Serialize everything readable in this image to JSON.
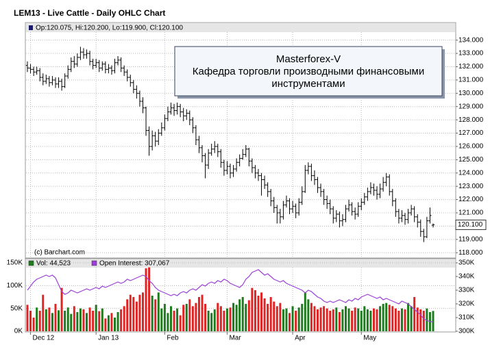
{
  "chart_data": [
    {
      "type": "ohlc",
      "title": "LEM13 - Live Cattle - Daily OHLC Chart",
      "info": "Op:120.075, Hi:120.200, Lo:119.900, Cl:120.100",
      "annotation": [
        "Masterforex-V",
        "Кафедра торговли производными финансовыми",
        "инструментами"
      ],
      "credit": "(c) Barchart.com",
      "color": "#000000",
      "open": [
        132.1,
        131.9,
        131.8,
        131.6,
        131.7,
        131.2,
        130.9,
        131.1,
        130.8,
        131.0,
        130.7,
        130.9,
        130.5,
        131.3,
        131.8,
        132.4,
        132.2,
        132.7,
        133.1,
        132.9,
        133.0,
        132.4,
        132.1,
        132.3,
        131.9,
        132.2,
        131.8,
        131.9,
        131.7,
        132.3,
        132.5,
        131.9,
        131.6,
        131.2,
        130.8,
        130.3,
        130.0,
        129.4,
        128.9,
        127.2,
        126.0,
        126.8,
        126.4,
        127.0,
        127.4,
        128.1,
        128.6,
        128.9,
        128.7,
        129.0,
        128.6,
        128.3,
        128.5,
        128.0,
        127.4,
        126.5,
        125.9,
        125.3,
        124.6,
        125.5,
        125.8,
        126.0,
        125.6,
        124.8,
        124.2,
        124.5,
        124.0,
        124.3,
        124.8,
        125.1,
        125.4,
        125.8,
        124.9,
        124.4,
        124.0,
        123.8,
        123.5,
        123.1,
        122.6,
        121.9,
        121.4,
        121.0,
        120.7,
        121.6,
        121.9,
        121.3,
        121.5,
        121.0,
        121.8,
        122.6,
        124.2,
        124.5,
        123.8,
        123.5,
        122.9,
        122.6,
        122.0,
        121.7,
        121.3,
        120.6,
        120.9,
        120.4,
        120.5,
        121.3,
        121.6,
        121.1,
        120.9,
        121.5,
        121.8,
        122.2,
        122.6,
        122.9,
        122.7,
        122.4,
        122.8,
        123.3,
        123.7,
        122.6,
        121.9,
        121.1,
        120.6,
        120.8,
        120.5,
        121.0,
        121.3,
        120.7,
        120.3,
        119.6,
        119.2,
        120.4,
        120.075
      ],
      "high": [
        132.4,
        132.2,
        132.0,
        132.0,
        131.9,
        131.5,
        131.4,
        131.3,
        131.3,
        131.2,
        131.2,
        131.1,
        131.5,
        132.1,
        132.7,
        132.8,
        133.0,
        133.5,
        133.4,
        133.3,
        133.2,
        132.6,
        132.6,
        132.5,
        132.4,
        132.4,
        132.2,
        132.1,
        132.6,
        132.8,
        132.7,
        132.1,
        131.8,
        131.4,
        131.0,
        130.6,
        130.2,
        129.7,
        129.0,
        127.5,
        127.2,
        127.1,
        127.3,
        127.8,
        128.4,
        129.0,
        129.3,
        129.2,
        129.3,
        129.2,
        128.9,
        128.8,
        128.7,
        128.2,
        127.6,
        126.8,
        126.1,
        125.5,
        125.8,
        126.2,
        126.4,
        126.2,
        125.8,
        125.0,
        124.9,
        124.7,
        124.6,
        125.1,
        125.4,
        125.8,
        126.1,
        125.9,
        125.1,
        124.6,
        124.3,
        124.0,
        123.8,
        123.3,
        122.8,
        122.2,
        121.6,
        121.3,
        121.9,
        122.3,
        122.1,
        121.9,
        121.7,
        122.1,
        123.0,
        124.6,
        124.8,
        124.7,
        124.2,
        123.7,
        123.2,
        122.8,
        122.3,
        122.0,
        121.5,
        121.2,
        121.1,
        120.9,
        121.6,
        122.0,
        121.8,
        121.4,
        121.8,
        122.1,
        122.5,
        122.9,
        123.3,
        123.2,
        123.0,
        123.2,
        123.7,
        124.0,
        123.9,
        122.8,
        122.1,
        121.3,
        121.2,
        121.0,
        121.3,
        121.6,
        121.5,
        120.9,
        120.5,
        119.8,
        120.7,
        121.4,
        120.2
      ],
      "low": [
        131.6,
        131.5,
        131.3,
        131.4,
        130.9,
        130.6,
        130.7,
        130.5,
        130.6,
        130.4,
        130.4,
        130.2,
        130.4,
        131.1,
        131.6,
        131.9,
        132.0,
        132.5,
        132.6,
        132.6,
        132.1,
        131.8,
        131.9,
        131.6,
        131.7,
        131.5,
        131.5,
        131.4,
        131.5,
        132.1,
        131.6,
        131.3,
        130.9,
        130.5,
        130.0,
        129.6,
        129.0,
        128.5,
        126.8,
        125.3,
        125.7,
        126.0,
        126.1,
        126.8,
        127.2,
        127.9,
        128.4,
        128.3,
        128.4,
        128.2,
        127.9,
        128.0,
        127.6,
        127.0,
        126.1,
        125.5,
        124.8,
        123.6,
        124.3,
        125.3,
        125.5,
        125.2,
        124.4,
        123.8,
        123.9,
        123.6,
        123.7,
        124.1,
        124.5,
        125.0,
        125.2,
        124.5,
        124.0,
        123.6,
        123.4,
        122.3,
        122.8,
        122.2,
        121.5,
        121.0,
        120.2,
        120.2,
        120.5,
        121.4,
        120.9,
        121.0,
        120.6,
        120.8,
        121.6,
        122.5,
        123.9,
        123.4,
        123.1,
        122.5,
        122.2,
        121.6,
        121.3,
        120.9,
        120.2,
        120.3,
        119.9,
        120.0,
        120.3,
        121.1,
        120.8,
        120.5,
        120.7,
        121.2,
        121.6,
        121.9,
        122.4,
        122.3,
        122.0,
        122.1,
        122.6,
        123.0,
        122.3,
        121.5,
        120.7,
        120.2,
        120.3,
        120.1,
        120.2,
        120.8,
        120.3,
        119.9,
        119.2,
        118.8,
        119.1,
        120.2,
        119.9
      ],
      "close": [
        131.9,
        131.8,
        131.6,
        131.7,
        131.2,
        130.9,
        131.1,
        130.8,
        131.0,
        130.7,
        130.9,
        130.5,
        131.3,
        131.8,
        132.4,
        132.2,
        132.7,
        133.1,
        132.9,
        133.0,
        132.4,
        132.1,
        132.3,
        131.9,
        132.2,
        131.8,
        131.9,
        131.7,
        132.3,
        132.5,
        131.9,
        131.6,
        131.2,
        130.8,
        130.3,
        130.0,
        129.4,
        128.9,
        127.2,
        126.0,
        126.8,
        126.4,
        127.0,
        127.4,
        128.1,
        128.6,
        128.9,
        128.7,
        129.0,
        128.6,
        128.3,
        128.5,
        128.0,
        127.4,
        126.5,
        125.9,
        125.3,
        124.6,
        125.5,
        125.8,
        126.0,
        125.6,
        124.8,
        124.2,
        124.5,
        124.0,
        124.3,
        124.8,
        125.1,
        125.4,
        125.8,
        124.9,
        124.4,
        124.0,
        123.8,
        123.5,
        123.1,
        122.6,
        121.9,
        121.4,
        121.0,
        120.7,
        121.6,
        121.9,
        121.3,
        121.5,
        121.0,
        121.8,
        122.6,
        124.2,
        124.5,
        123.8,
        123.5,
        122.9,
        122.6,
        122.0,
        121.7,
        121.3,
        120.6,
        120.9,
        120.4,
        120.5,
        121.3,
        121.6,
        121.1,
        120.9,
        121.5,
        121.8,
        122.2,
        122.6,
        122.9,
        122.7,
        122.4,
        122.8,
        123.3,
        123.7,
        122.6,
        121.9,
        121.1,
        120.6,
        120.8,
        120.5,
        121.0,
        121.3,
        120.7,
        120.3,
        119.6,
        119.2,
        120.4,
        120.8,
        120.1
      ],
      "last_price": {
        "value": 120.1,
        "label": "120.100"
      },
      "ylim": [
        117.6,
        134.6
      ],
      "yticks": [
        {
          "value": 118,
          "label": "118.000"
        },
        {
          "value": 119,
          "label": "119.000"
        },
        {
          "value": 120,
          "label": "120.000"
        },
        {
          "value": 121,
          "label": "121.000"
        },
        {
          "value": 122,
          "label": "122.000"
        },
        {
          "value": 123,
          "label": "123.000"
        },
        {
          "value": 124,
          "label": "124.000"
        },
        {
          "value": 125,
          "label": "125.000"
        },
        {
          "value": 126,
          "label": "126.000"
        },
        {
          "value": 127,
          "label": "127.000"
        },
        {
          "value": 128,
          "label": "128.000"
        },
        {
          "value": 129,
          "label": "129.000"
        },
        {
          "value": 130,
          "label": "130.000"
        },
        {
          "value": 131,
          "label": "131.000"
        },
        {
          "value": 132,
          "label": "132.000"
        },
        {
          "value": 133,
          "label": "133.000"
        },
        {
          "value": 134,
          "label": "134.000"
        }
      ],
      "grid": true
    },
    {
      "type": "volume",
      "categories": [
        null,
        "Dec 12",
        null,
        null,
        null,
        null,
        null,
        null,
        null,
        null,
        null,
        null,
        null,
        null,
        null,
        null,
        null,
        null,
        null,
        null,
        null,
        null,
        "Jan 13",
        null,
        null,
        null,
        null,
        null,
        null,
        null,
        null,
        null,
        null,
        null,
        null,
        null,
        null,
        null,
        null,
        null,
        null,
        null,
        null,
        null,
        "Feb",
        null,
        null,
        null,
        null,
        null,
        null,
        null,
        null,
        null,
        null,
        null,
        null,
        null,
        null,
        null,
        null,
        null,
        null,
        null,
        "Mar",
        null,
        null,
        null,
        null,
        null,
        null,
        null,
        null,
        null,
        null,
        null,
        null,
        null,
        null,
        null,
        null,
        null,
        null,
        null,
        null,
        "Apr",
        null,
        null,
        null,
        null,
        null,
        null,
        null,
        null,
        null,
        null,
        null,
        null,
        null,
        null,
        null,
        null,
        null,
        null,
        null,
        null,
        null,
        "May",
        null,
        null,
        null,
        null,
        null,
        null,
        null,
        null,
        null,
        null,
        null,
        null,
        null,
        null,
        null,
        null,
        null,
        null,
        null,
        null,
        null,
        null,
        null
      ],
      "series": [
        {
          "name": "Vol: 44,523",
          "color": "#1e7b1e",
          "down_color": "#e02424",
          "values": [
            58000,
            45000,
            30000,
            52000,
            45000,
            80000,
            48000,
            52000,
            40000,
            60000,
            46000,
            95000,
            45000,
            52000,
            38000,
            55000,
            42000,
            50000,
            48000,
            40000,
            52000,
            45000,
            58000,
            44000,
            50000,
            28000,
            35000,
            40000,
            30000,
            42000,
            48000,
            55000,
            70000,
            80000,
            75000,
            65000,
            80000,
            85000,
            138000,
            140000,
            78000,
            70000,
            85000,
            50000,
            60000,
            40000,
            55000,
            45000,
            50000,
            35000,
            58000,
            60000,
            70000,
            55000,
            62000,
            75000,
            80000,
            60000,
            45000,
            40000,
            48000,
            62000,
            55000,
            45000,
            50000,
            52000,
            62000,
            58000,
            70000,
            75000,
            60000,
            68000,
            95000,
            90000,
            78000,
            85000,
            72000,
            60000,
            75000,
            65000,
            55000,
            62000,
            48000,
            50000,
            40000,
            55000,
            45000,
            52000,
            60000,
            85000,
            70000,
            62000,
            55000,
            48000,
            52000,
            55000,
            50000,
            45000,
            48000,
            52000,
            42000,
            48000,
            55000,
            50000,
            45000,
            52000,
            50000,
            45000,
            55000,
            48000,
            45000,
            50000,
            48000,
            55000,
            60000,
            62000,
            58000,
            55000,
            50000,
            45000,
            50000,
            48000,
            62000,
            55000,
            75000,
            52000,
            48000,
            45000,
            50000,
            42000,
            44523
          ]
        },
        {
          "name": "Open Interest: 307,067",
          "color": "#9b3fd6",
          "axis": "y2",
          "values": [
            330000,
            333000,
            336000,
            338000,
            339000,
            340000,
            341000,
            340000,
            341000,
            339000,
            334000,
            329000,
            327000,
            328000,
            330000,
            329000,
            328000,
            329000,
            330000,
            331000,
            330000,
            331000,
            332000,
            331000,
            333000,
            332000,
            333000,
            334000,
            335000,
            336000,
            335000,
            336000,
            338000,
            337000,
            338000,
            339000,
            340000,
            341000,
            340000,
            337000,
            335000,
            332000,
            330000,
            329000,
            328000,
            327000,
            326000,
            327000,
            326000,
            328000,
            329000,
            328000,
            330000,
            331000,
            330000,
            332000,
            334000,
            333000,
            335000,
            336000,
            335000,
            337000,
            336000,
            338000,
            337000,
            335000,
            334000,
            333000,
            332000,
            334000,
            338000,
            340000,
            343000,
            344000,
            345000,
            343000,
            341000,
            342000,
            340000,
            338000,
            337000,
            336000,
            337000,
            335000,
            334000,
            333000,
            332000,
            331000,
            330000,
            328000,
            330000,
            329000,
            327000,
            325000,
            324000,
            322000,
            321000,
            322000,
            321000,
            322000,
            323000,
            322000,
            321000,
            323000,
            322000,
            324000,
            323000,
            325000,
            326000,
            327000,
            326000,
            325000,
            324000,
            325000,
            323000,
            324000,
            323000,
            322000,
            321000,
            320000,
            322000,
            321000,
            320000,
            318000,
            316000,
            314000,
            312000,
            309000,
            308000,
            307000,
            307067
          ]
        }
      ],
      "ylim": [
        0,
        156000
      ],
      "yticks": [
        {
          "value": 0,
          "label": "0K"
        },
        {
          "value": 50000,
          "label": "50K"
        },
        {
          "value": 100000,
          "label": "100K"
        },
        {
          "value": 150000,
          "label": "150K"
        }
      ],
      "y2lim": [
        300000,
        352000
      ],
      "y2ticks": [
        {
          "value": 300000,
          "label": "300K"
        },
        {
          "value": 310000,
          "label": "310K"
        },
        {
          "value": 320000,
          "label": "320K"
        },
        {
          "value": 330000,
          "label": "330K"
        },
        {
          "value": 340000,
          "label": "340K"
        },
        {
          "value": 350000,
          "label": "350K"
        }
      ],
      "grid": true
    }
  ]
}
